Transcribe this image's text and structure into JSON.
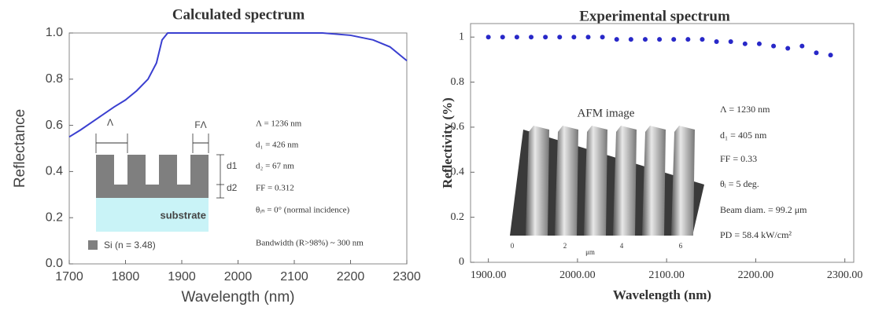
{
  "chart_data": [
    {
      "type": "line",
      "title": "Calculated spectrum",
      "x_label": "Wavelength (nm)",
      "y_label": "Reflectance",
      "x": [
        1700,
        1720,
        1750,
        1780,
        1800,
        1820,
        1840,
        1855,
        1865,
        1875,
        1900,
        2000,
        2100,
        2150,
        2200,
        2240,
        2270,
        2300
      ],
      "values": [
        0.55,
        0.58,
        0.63,
        0.68,
        0.71,
        0.75,
        0.8,
        0.87,
        0.97,
        1.0,
        1.0,
        1.0,
        1.0,
        1.0,
        0.99,
        0.97,
        0.94,
        0.88
      ],
      "color": "#3a3fd0",
      "xlim": [
        1700,
        2300
      ],
      "xticks": [
        1700,
        1800,
        1900,
        2000,
        2100,
        2200,
        2300
      ],
      "ylim": [
        0,
        1
      ],
      "yticks": [
        {
          "value": 0,
          "label": "0.0"
        },
        {
          "value": 0.2,
          "label": "0.2"
        },
        {
          "value": 0.4,
          "label": "0.4"
        },
        {
          "value": 0.6,
          "label": "0.6"
        },
        {
          "value": 0.8,
          "label": "0.8"
        },
        {
          "value": 1,
          "label": "1.0"
        }
      ],
      "annotations": [
        "Λ = 1236 nm",
        "d₁ = 426 nm",
        "d₂ = 67 nm",
        "FF = 0.312",
        "θᵢₙ = 0° (normal incidence)",
        "Bandwidth (R>98%) ~ 300 nm"
      ],
      "inset_labels": [
        "Λ",
        "FΛ",
        "d1",
        "d2",
        "substrate",
        "Si (n = 3.48)"
      ]
    },
    {
      "type": "scatter",
      "title": "Experimental spectrum",
      "x_label": "Wavelength  (nm)",
      "y_label": "Reflectivity  (%)",
      "x": [
        1900,
        1916,
        1932,
        1948,
        1964,
        1980,
        1996,
        2012,
        2028,
        2044,
        2060,
        2076,
        2092,
        2108,
        2124,
        2140,
        2156,
        2172,
        2188,
        2204,
        2220,
        2236,
        2252,
        2268,
        2284
      ],
      "values": [
        1,
        1,
        1,
        1,
        1,
        1,
        1,
        1,
        1,
        0.99,
        0.99,
        0.99,
        0.99,
        0.99,
        0.99,
        0.99,
        0.98,
        0.98,
        0.97,
        0.97,
        0.96,
        0.95,
        0.96,
        0.93,
        0.92
      ],
      "color": "#2828c8",
      "xlim": [
        1880,
        2310
      ],
      "xticks": [
        {
          "value": 1900,
          "label": "1900.00"
        },
        {
          "value": 2000,
          "label": "2000.00"
        },
        {
          "value": 2100,
          "label": "2100.00"
        },
        {
          "value": 2200,
          "label": "2200.00"
        },
        {
          "value": 2300,
          "label": "2300.00"
        }
      ],
      "ylim": [
        0,
        1.06
      ],
      "yticks": [
        0,
        0.2,
        0.4,
        0.6,
        0.8,
        1
      ],
      "annotations": [
        "Λ = 1230 nm",
        "d₁ = 405 nm",
        "FF = 0.33",
        "θᵢ = 5 deg.",
        "Beam diam. = 99.2 μm",
        "PD = 58.4 kW/cm²"
      ],
      "inset_labels": [
        "AFM image",
        "0",
        "2",
        "4",
        "6",
        "μm"
      ]
    }
  ]
}
